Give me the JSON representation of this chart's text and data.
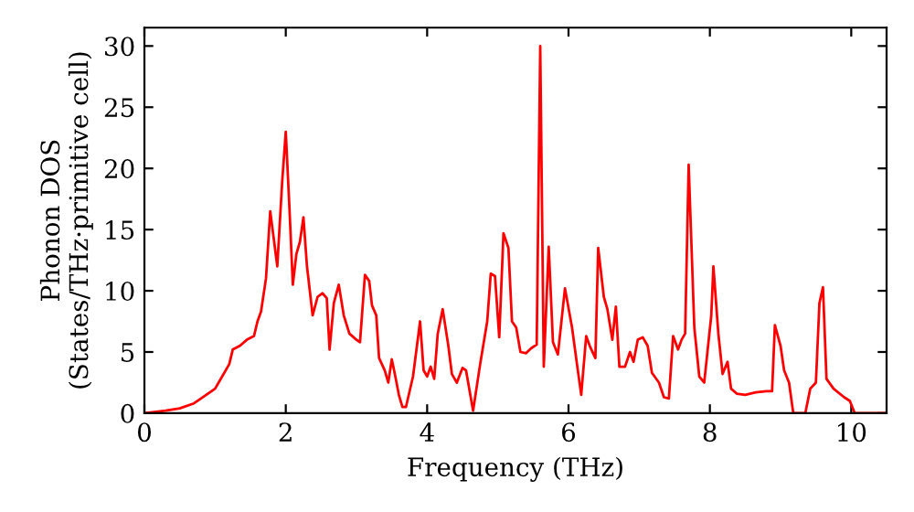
{
  "chart_data": {
    "type": "line",
    "xlabel": "Frequency (THz)",
    "ylabel": "Phonon DOS\n(States/THz·primitive cell)",
    "xlim": [
      0,
      10.5
    ],
    "ylim": [
      0,
      31.5
    ],
    "xticks": [
      0,
      2,
      4,
      6,
      8,
      10
    ],
    "yticks": [
      0,
      5,
      10,
      15,
      20,
      25,
      30
    ],
    "grid": false,
    "legend": false,
    "series": [
      {
        "color": "#ff0000",
        "x": [
          0,
          0.3,
          0.5,
          0.7,
          0.8,
          1.0,
          1.1,
          1.2,
          1.25,
          1.35,
          1.45,
          1.55,
          1.6,
          1.65,
          1.72,
          1.78,
          1.88,
          1.95,
          2.0,
          2.05,
          2.1,
          2.15,
          2.2,
          2.25,
          2.3,
          2.38,
          2.45,
          2.52,
          2.58,
          2.62,
          2.68,
          2.75,
          2.82,
          2.9,
          3.0,
          3.05,
          3.12,
          3.18,
          3.22,
          3.28,
          3.32,
          3.4,
          3.45,
          3.5,
          3.55,
          3.6,
          3.65,
          3.7,
          3.8,
          3.9,
          3.95,
          4.0,
          4.05,
          4.1,
          4.15,
          4.22,
          4.3,
          4.35,
          4.42,
          4.5,
          4.55,
          4.65,
          4.75,
          4.85,
          4.9,
          4.96,
          5.02,
          5.08,
          5.15,
          5.2,
          5.26,
          5.32,
          5.4,
          5.47,
          5.55,
          5.6,
          5.65,
          5.72,
          5.78,
          5.85,
          5.95,
          6.05,
          6.12,
          6.18,
          6.25,
          6.3,
          6.38,
          6.42,
          6.5,
          6.55,
          6.62,
          6.67,
          6.72,
          6.8,
          6.87,
          6.92,
          6.98,
          7.05,
          7.12,
          7.18,
          7.28,
          7.35,
          7.42,
          7.48,
          7.55,
          7.6,
          7.65,
          7.7,
          7.78,
          7.85,
          7.92,
          8.02,
          8.05,
          8.12,
          8.18,
          8.25,
          8.3,
          8.38,
          8.5,
          8.65,
          8.8,
          8.88,
          8.92,
          9.0,
          9.05,
          9.12,
          9.18,
          9.35,
          9.42,
          9.5,
          9.55,
          9.6,
          9.65,
          9.75,
          9.9,
          9.98,
          10.05,
          10.5
        ],
        "values": [
          0,
          0.2,
          0.4,
          0.8,
          1.2,
          2.0,
          3.0,
          4.0,
          5.2,
          5.5,
          6.0,
          6.3,
          7.5,
          8.3,
          11,
          16.5,
          12,
          19,
          23,
          17,
          10.5,
          13,
          14,
          16,
          12,
          8,
          9.5,
          9.8,
          9.4,
          5.2,
          9.0,
          10.5,
          8,
          6.5,
          6.0,
          5.8,
          11.3,
          10.8,
          8.8,
          8.0,
          4.5,
          3.5,
          2.5,
          4.4,
          3.0,
          1.5,
          0.5,
          0.5,
          3.0,
          7.5,
          3.5,
          3.0,
          3.8,
          2.8,
          6.5,
          8.5,
          5.5,
          3.2,
          2.5,
          3.7,
          3.5,
          0.2,
          4.0,
          7.5,
          11.4,
          11.2,
          6.2,
          14.7,
          13.5,
          7.5,
          7.0,
          5.0,
          4.9,
          5.3,
          5.6,
          30,
          3.8,
          13.6,
          5.8,
          4.8,
          10.2,
          7.0,
          4.0,
          1.5,
          6.3,
          5.5,
          4.5,
          13.5,
          9.5,
          8.5,
          6.0,
          8.7,
          3.8,
          3.8,
          5.0,
          4.2,
          6.0,
          6.2,
          5.5,
          3.3,
          2.5,
          1.3,
          1.2,
          6.3,
          5.2,
          6.0,
          6.5,
          20.3,
          7.0,
          3.0,
          2.5,
          8.0,
          12.0,
          6.5,
          3.2,
          4.2,
          2.0,
          1.6,
          1.5,
          1.7,
          1.8,
          1.8,
          7.2,
          5.5,
          3.5,
          2.5,
          0,
          0,
          2.0,
          2.5,
          9.0,
          10.3,
          2.8,
          2.0,
          1.3,
          1.0,
          0,
          0
        ]
      }
    ]
  }
}
